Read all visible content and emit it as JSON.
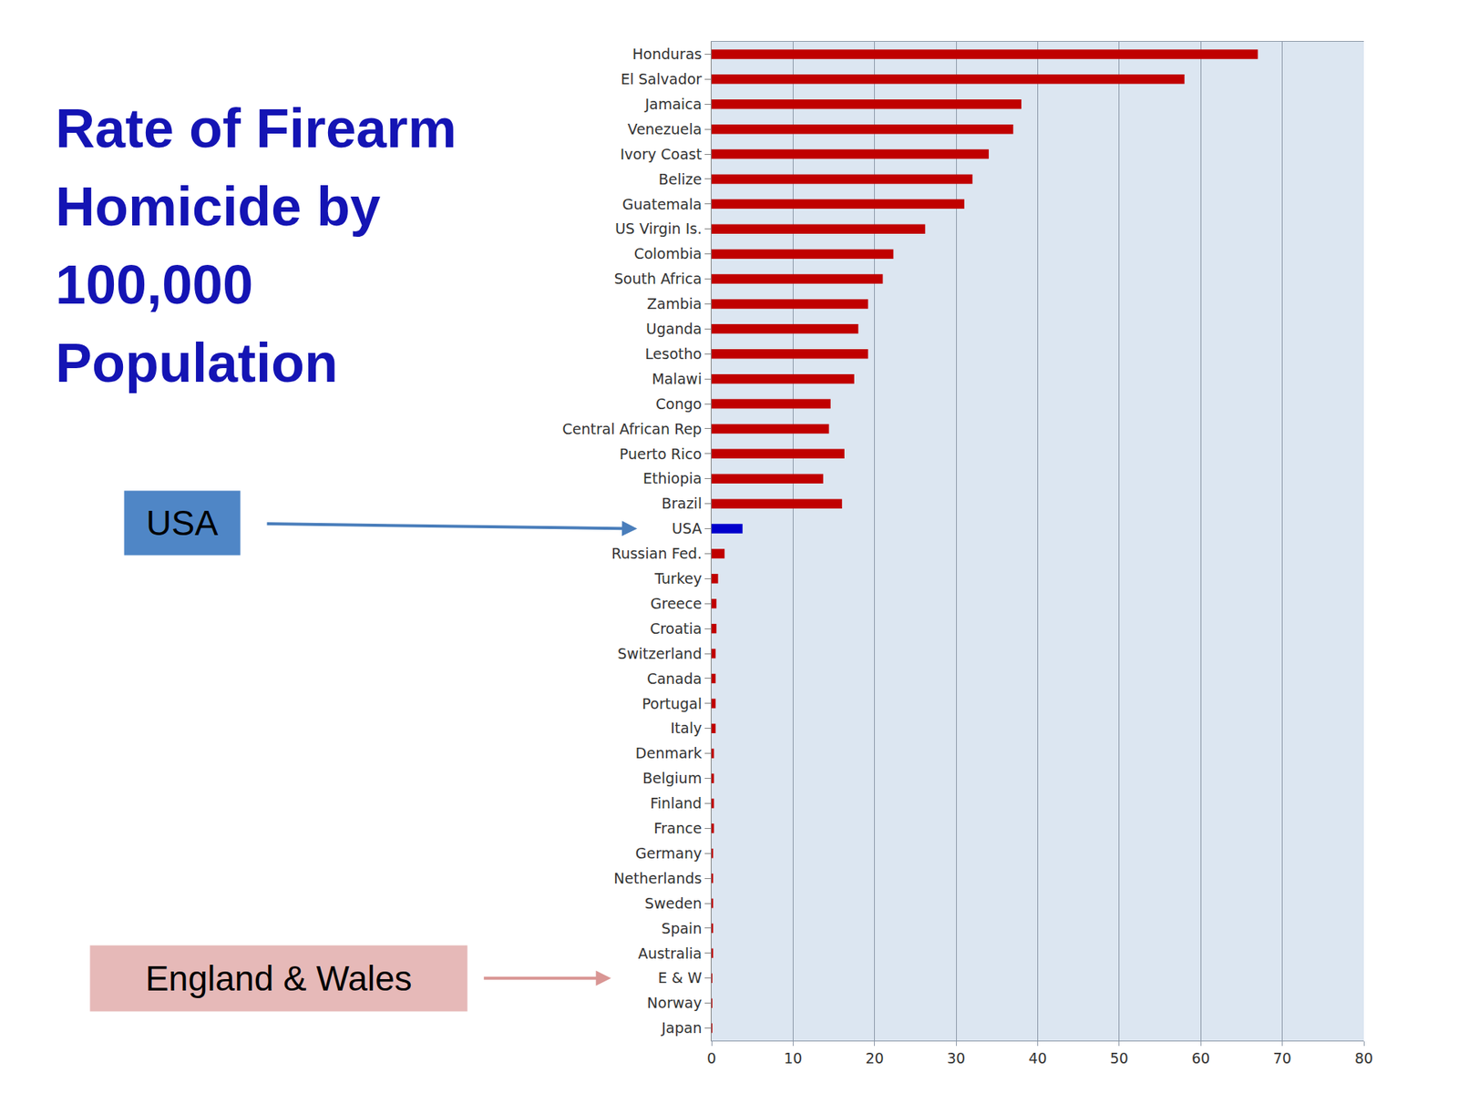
{
  "chart_data": {
    "type": "bar",
    "orientation": "horizontal",
    "title": "Rate of Firearm Homicide by 100,000 Population",
    "categories": [
      "Honduras",
      "El Salvador",
      "Jamaica",
      "Venezuela",
      "Ivory Coast",
      "Belize",
      "Guatemala",
      "US Virgin Is.",
      "Colombia",
      "South Africa",
      "Zambia",
      "Uganda",
      "Lesotho",
      "Malawi",
      "Congo",
      "Central African Rep",
      "Puerto Rico",
      "Ethiopia",
      "Brazil",
      "USA",
      "Russian Fed.",
      "Turkey",
      "Greece",
      "Croatia",
      "Switzerland",
      "Canada",
      "Portugal",
      "Italy",
      "Denmark",
      "Belgium",
      "Finland",
      "France",
      "Germany",
      "Netherlands",
      "Sweden",
      "Spain",
      "Australia",
      "E & W",
      "Norway",
      "Japan"
    ],
    "values": [
      67,
      58,
      38,
      37,
      34,
      32,
      31,
      26.2,
      22.3,
      21,
      19.2,
      18,
      19.2,
      17.5,
      14.6,
      14.4,
      16.3,
      13.7,
      16,
      3.8,
      1.6,
      0.8,
      0.6,
      0.6,
      0.5,
      0.5,
      0.5,
      0.5,
      0.3,
      0.3,
      0.3,
      0.3,
      0.2,
      0.2,
      0.2,
      0.2,
      0.2,
      0.1,
      0.1,
      0.1
    ],
    "colors": [
      "#c00000",
      "#c00000",
      "#c00000",
      "#c00000",
      "#c00000",
      "#c00000",
      "#c00000",
      "#c00000",
      "#c00000",
      "#c00000",
      "#c00000",
      "#c00000",
      "#c00000",
      "#c00000",
      "#c00000",
      "#c00000",
      "#c00000",
      "#c00000",
      "#c00000",
      "#0000cc",
      "#c00000",
      "#c00000",
      "#c00000",
      "#c00000",
      "#c00000",
      "#c00000",
      "#c00000",
      "#c00000",
      "#c00000",
      "#c00000",
      "#c00000",
      "#c00000",
      "#c00000",
      "#c00000",
      "#c00000",
      "#c00000",
      "#c00000",
      "#c00000",
      "#c00000",
      "#c00000"
    ],
    "xlim": [
      0,
      80
    ],
    "xticks": [
      0,
      10,
      20,
      30,
      40,
      50,
      60,
      70,
      80
    ],
    "grid": true,
    "annotations": [
      {
        "text": "USA",
        "category": "USA"
      },
      {
        "text": "England & Wales",
        "category": "E & W"
      }
    ]
  }
}
